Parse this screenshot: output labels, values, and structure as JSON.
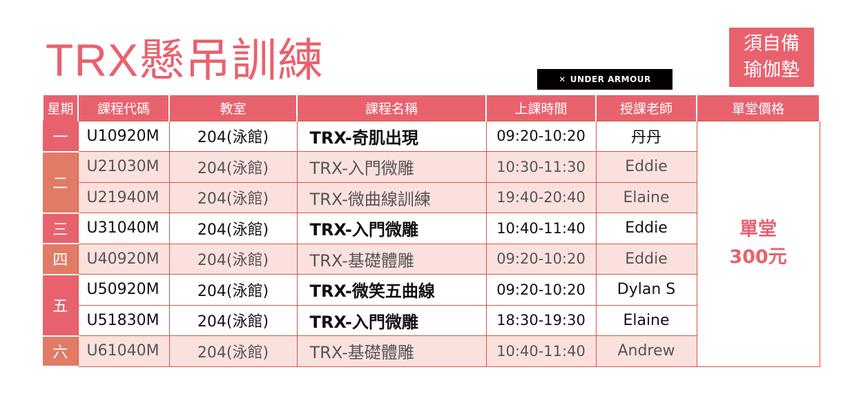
{
  "title": "TRX懸吊訓練",
  "logo": {
    "text": "UNDER ARMOUR",
    "icon": "under-armour-logo"
  },
  "note": [
    "須自備",
    "瑜伽墊"
  ],
  "headers": [
    "星期",
    "課程代碼",
    "教室",
    "課程名稱",
    "上課時間",
    "授課老師",
    "單堂價格"
  ],
  "days": [
    "一",
    "二",
    "三",
    "四",
    "五",
    "六"
  ],
  "rows": [
    {
      "code": "U10920M",
      "room": "204(泳館)",
      "name": "TRX-奇肌出現",
      "time": "09:20-10:20",
      "teacher": "丹丹"
    },
    {
      "code": "U21030M",
      "room": "204(泳館)",
      "name": "TRX-入門微雕",
      "time": "10:30-11:30",
      "teacher": "Eddie"
    },
    {
      "code": "U21940M",
      "room": "204(泳館)",
      "name": "TRX-微曲線訓練",
      "time": "19:40-20:40",
      "teacher": "Elaine"
    },
    {
      "code": "U31040M",
      "room": "204(泳館)",
      "name": "TRX-入門微雕",
      "time": "10:40-11:40",
      "teacher": "Eddie"
    },
    {
      "code": "U40920M",
      "room": "204(泳館)",
      "name": "TRX-基礎體雕",
      "time": "09:20-10:20",
      "teacher": "Eddie"
    },
    {
      "code": "U50920M",
      "room": "204(泳館)",
      "name": "TRX-微笑五曲線",
      "time": "09:20-10:20",
      "teacher": "Dylan S"
    },
    {
      "code": "U51830M",
      "room": "204(泳館)",
      "name": "TRX-入門微雕",
      "time": "18:30-19:30",
      "teacher": "Elaine"
    },
    {
      "code": "U61040M",
      "room": "204(泳館)",
      "name": "TRX-基礎體雕",
      "time": "10:40-11:40",
      "teacher": "Andrew"
    }
  ],
  "price": {
    "line1": "單堂",
    "line2": "300元"
  },
  "colors": {
    "header": "#E8626E",
    "day_alt": "#E17B65",
    "row_alt": "#FBE1DE",
    "border": "#D9533F"
  }
}
